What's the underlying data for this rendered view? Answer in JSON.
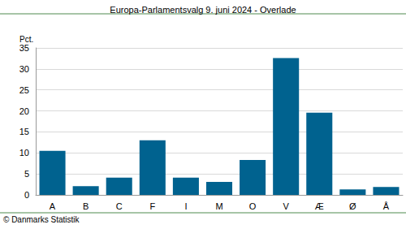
{
  "chart_data": {
    "type": "bar",
    "title": "Europa-Parlamentsvalg 9. juni 2024 - Overlade",
    "ylabel": "Pct.",
    "annotation": "© Danmarks Statistik",
    "categories": [
      "A",
      "B",
      "C",
      "F",
      "I",
      "M",
      "O",
      "V",
      "Æ",
      "Ø",
      "Å"
    ],
    "values": [
      10.5,
      2.1,
      4.1,
      13.0,
      4.1,
      3.1,
      8.3,
      32.6,
      19.6,
      1.3,
      1.9
    ],
    "color": "#00628f",
    "ylim": [
      0,
      35
    ],
    "yticks": [
      0,
      5,
      10,
      15,
      20,
      25,
      30,
      35
    ],
    "grid": true
  }
}
